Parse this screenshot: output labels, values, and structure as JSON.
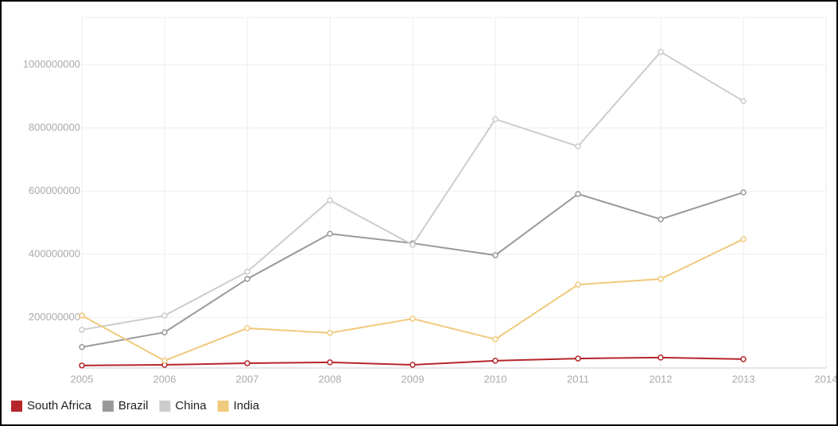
{
  "chart_data": {
    "type": "line",
    "x": [
      2005,
      2006,
      2007,
      2008,
      2009,
      2010,
      2011,
      2012,
      2013
    ],
    "series": [
      {
        "name": "South Africa",
        "color": "#b5262b",
        "values": [
          48000000,
          50000000,
          55000000,
          58000000,
          50000000,
          63000000,
          70000000,
          73000000,
          68000000
        ]
      },
      {
        "name": "Brazil",
        "color": "#999999",
        "values": [
          106000000,
          153000000,
          322000000,
          465000000,
          435000000,
          397000000,
          591000000,
          511000000,
          596000000
        ]
      },
      {
        "name": "China",
        "color": "#cccccc",
        "values": [
          161000000,
          206000000,
          345000000,
          571000000,
          430000000,
          828000000,
          742000000,
          1041000000,
          885000000
        ]
      },
      {
        "name": "India",
        "color": "#f0c97d",
        "values": [
          206000000,
          63000000,
          166000000,
          151000000,
          196000000,
          131000000,
          304000000,
          322000000,
          448000000
        ]
      }
    ],
    "xlim": [
      2005,
      2014
    ],
    "xticks": [
      2005,
      2006,
      2007,
      2008,
      2009,
      2010,
      2011,
      2012,
      2013,
      2014
    ],
    "ylim": [
      40000000,
      1150000000
    ],
    "yticks": [
      200000000,
      400000000,
      600000000,
      800000000,
      1000000000
    ],
    "grid": true,
    "legend": "bottom-left"
  }
}
